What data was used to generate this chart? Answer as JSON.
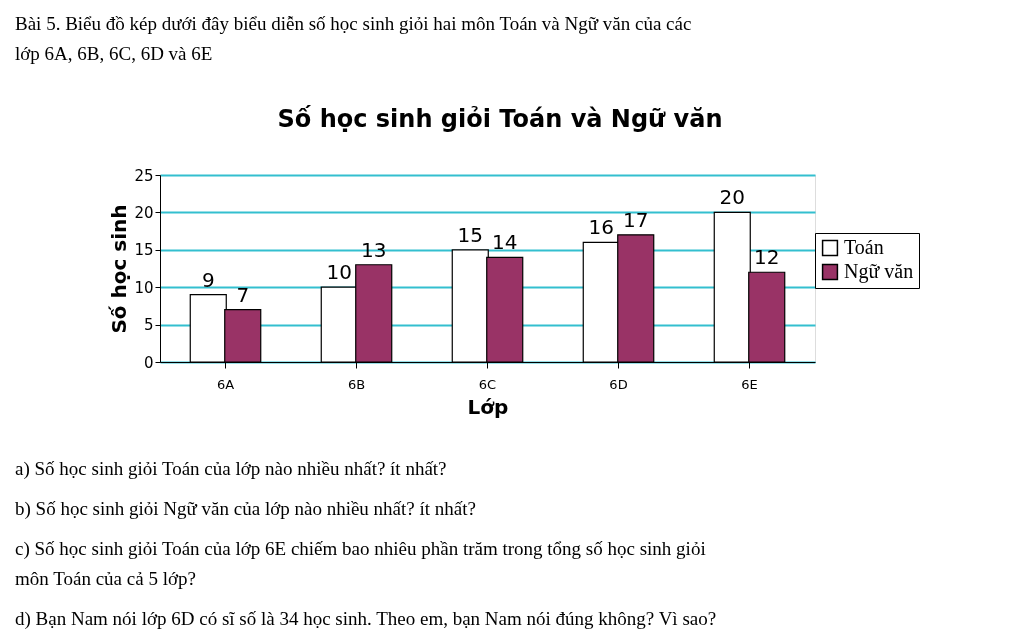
{
  "chart_data": {
    "type": "bar",
    "title": "Số học sinh giỏi Toán và Ngữ văn",
    "xlabel": "Lớp",
    "ylabel": "Số học sinh",
    "categories": [
      "6A",
      "6B",
      "6C",
      "6D",
      "6E"
    ],
    "series": [
      {
        "name": "Toán",
        "color": "#ffffff",
        "values": [
          9,
          10,
          15,
          16,
          20
        ]
      },
      {
        "name": "Ngữ văn",
        "color": "#993366",
        "values": [
          7,
          13,
          14,
          17,
          12
        ]
      }
    ],
    "ylim": [
      0,
      25
    ],
    "yticks": [
      0,
      5,
      10,
      15,
      20,
      25
    ],
    "grid": "y",
    "legend": "right",
    "data_labels": true,
    "annotations": [
      "Bài 5. Biểu đồ kép dưới đây biểu diễn số học sinh giỏi hai môn Toán và Ngữ văn của các\nlớp 6A, 6B, 6C, 6D và 6E",
      "a) Số học sinh giỏi Toán của lớp nào nhiều nhất? ít nhất?",
      "b) Số học sinh giỏi Ngữ văn của lớp nào nhiều nhất? ít nhất?",
      "c) Số học sinh giỏi Toán của lớp 6E chiếm bao nhiêu phần trăm trong tổng số học sinh giỏi\n    môn Toán của cả 5 lớp?",
      "d) Bạn Nam nói lớp 6D có sĩ số là 34 học sinh. Theo em, bạn Nam nói đúng không? Vì sao?"
    ]
  }
}
